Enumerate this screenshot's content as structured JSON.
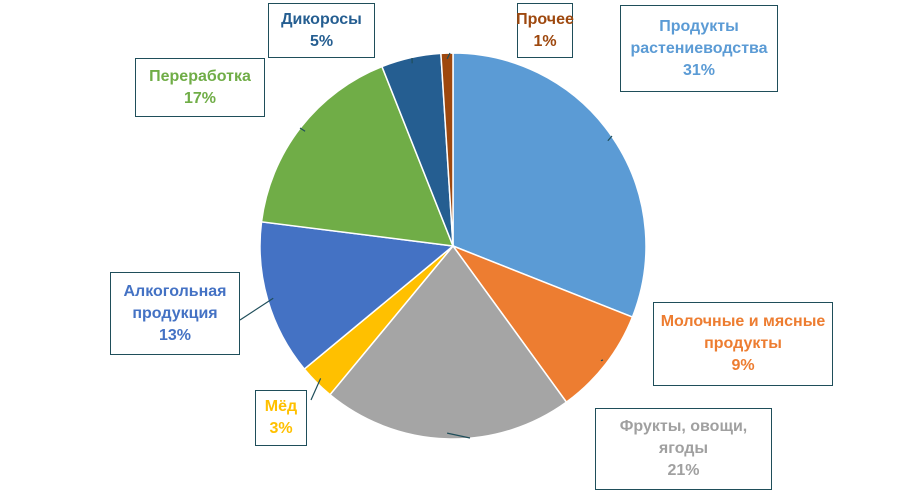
{
  "chart_data": {
    "type": "pie",
    "categories": [
      "Продукты растениеводства",
      "Молочные и мясные продукты",
      "Фрукты, овощи, ягоды",
      "Мёд",
      "Алкогольная продукция",
      "Переработка",
      "Дикоросы",
      "Прочее"
    ],
    "values": [
      31,
      9,
      21,
      3,
      13,
      17,
      5,
      1
    ],
    "value_labels": [
      "31%",
      "9%",
      "21%",
      "3%",
      "13%",
      "17%",
      "5%",
      "1%"
    ],
    "colors": [
      "#5b9bd5",
      "#ed7d31",
      "#a5a5a5",
      "#ffc000",
      "#4472c4",
      "#70ad47",
      "#255e91",
      "#9e480e"
    ]
  }
}
